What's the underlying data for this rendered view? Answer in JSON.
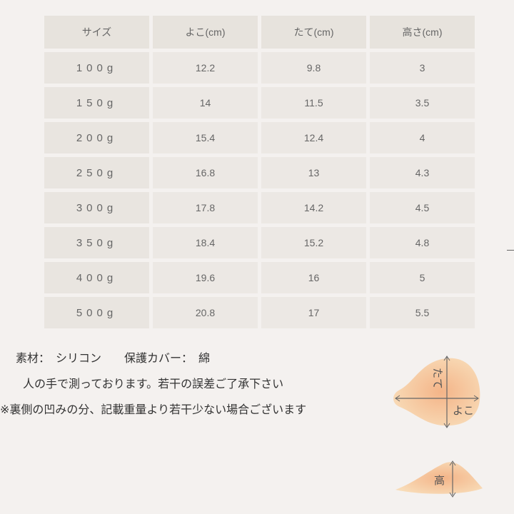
{
  "table": {
    "headers": [
      "サイズ",
      "よこ(cm)",
      "たて(cm)",
      "高さ(cm)"
    ],
    "rows": [
      [
        "100g",
        "12.2",
        "9.8",
        "3"
      ],
      [
        "150g",
        "14",
        "11.5",
        "3.5"
      ],
      [
        "200g",
        "15.4",
        "12.4",
        "4"
      ],
      [
        "250g",
        "16.8",
        "13",
        "4.3"
      ],
      [
        "300g",
        "17.8",
        "14.2",
        "4.5"
      ],
      [
        "350g",
        "18.4",
        "15.2",
        "4.8"
      ],
      [
        "400g",
        "19.6",
        "16",
        "5"
      ],
      [
        "500g",
        "20.8",
        "17",
        "5.5"
      ]
    ]
  },
  "notes": {
    "material": "素材：　シリコン　　保護カバー：　綿",
    "measure": "人の手で測っております。若干の誤差ご了承下さい",
    "weight": "※裏側の凹みの分、記載重量より若干少ない場合ございます"
  },
  "diagram": {
    "height_label": "たて",
    "width_label": "よこ",
    "depth_label": "高"
  },
  "colors": {
    "background": "#f4f1ef",
    "cell": "#ece8e4",
    "shape": "#f5c9a0"
  }
}
